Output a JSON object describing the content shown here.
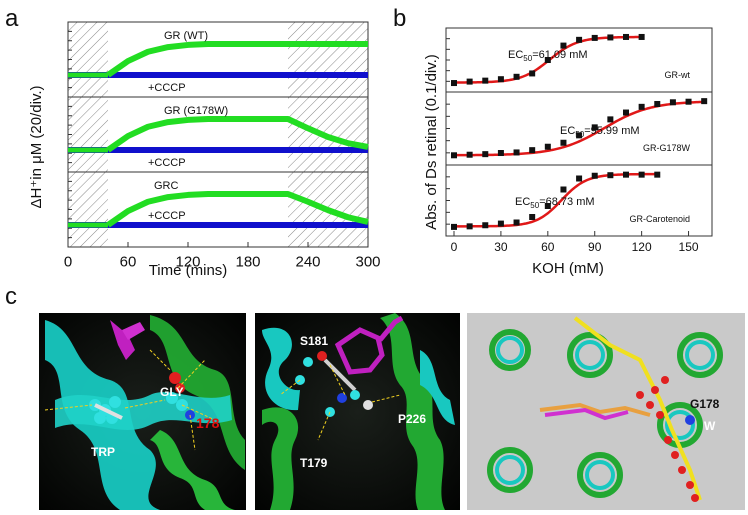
{
  "panel_labels": {
    "a": "a",
    "b": "b",
    "c": "c"
  },
  "chart_data": [
    {
      "type": "line",
      "panel": "a",
      "xlabel": "Time (mins)",
      "ylabel": "ΔH⁺in μM (20/div.)",
      "xlim": [
        0,
        300
      ],
      "xticks": [
        "0",
        "60",
        "120",
        "180",
        "240",
        "300"
      ],
      "light_off_shading_x": [
        [
          0,
          40
        ],
        [
          220,
          300
        ]
      ],
      "colors": {
        "signal": "#22dd22",
        "cccp": "#1010cc"
      },
      "subplots": [
        {
          "series": [
            {
              "name": "GR (WT)",
              "x": [
                40,
                60,
                80,
                100,
                120,
                140,
                160,
                180,
                200,
                220,
                240,
                260,
                280,
                300
              ],
              "y": [
                0,
                0.45,
                0.75,
                0.9,
                0.97,
                1.0,
                1.0,
                1.0,
                1.0,
                1.0,
                1.0,
                1.0,
                1.0,
                1.0
              ]
            },
            {
              "name": "+CCCP",
              "x": [
                0,
                300
              ],
              "y": [
                0,
                0
              ]
            }
          ]
        },
        {
          "series": [
            {
              "name": "GR (G178W)",
              "x": [
                40,
                60,
                80,
                100,
                120,
                140,
                160,
                180,
                200,
                220,
                240,
                260,
                280,
                300
              ],
              "y": [
                0,
                0.45,
                0.75,
                0.9,
                0.97,
                1.0,
                1.0,
                1.0,
                1.0,
                1.0,
                0.7,
                0.42,
                0.22,
                0.1
              ]
            },
            {
              "name": "+CCCP",
              "x": [
                0,
                300
              ],
              "y": [
                0,
                0
              ]
            }
          ]
        },
        {
          "series": [
            {
              "name": "GRC",
              "x": [
                40,
                60,
                80,
                100,
                120,
                140,
                160,
                180,
                200,
                220,
                240,
                260,
                280,
                300
              ],
              "y": [
                0,
                0.45,
                0.75,
                0.9,
                0.97,
                1.0,
                1.0,
                1.0,
                1.0,
                1.0,
                0.75,
                0.48,
                0.25,
                0.1
              ]
            },
            {
              "name": "+CCCP",
              "x": [
                0,
                300
              ],
              "y": [
                0,
                0
              ]
            }
          ]
        }
      ]
    },
    {
      "type": "scatter",
      "panel": "b",
      "xlabel": "KOH (mM)",
      "ylabel": "Abs. of Ds retinal (0.1/div.)",
      "xlim": [
        0,
        165
      ],
      "xticks": [
        "0",
        "30",
        "60",
        "90",
        "120",
        "150"
      ],
      "colors": {
        "points": "#111111",
        "fit": "#e01818"
      },
      "subplots": [
        {
          "name": "GR-wt",
          "ec50_prefix": "EC",
          "ec50_sub": "50",
          "ec50_rest": "=61.09 mM",
          "ec50": 61.09,
          "x": [
            0,
            10,
            20,
            30,
            40,
            50,
            60,
            70,
            80,
            90,
            100,
            110,
            120
          ],
          "y": [
            0.02,
            0.05,
            0.07,
            0.1,
            0.15,
            0.22,
            0.5,
            0.8,
            0.92,
            0.96,
            0.97,
            0.98,
            0.98
          ]
        },
        {
          "name": "GR-G178W",
          "ec50_prefix": "EC",
          "ec50_sub": "50",
          "ec50_rest": "=95.99 mM",
          "ec50": 95.99,
          "x": [
            0,
            10,
            20,
            30,
            40,
            50,
            60,
            70,
            80,
            90,
            100,
            110,
            120,
            130,
            140,
            150,
            160
          ],
          "y": [
            0.03,
            0.04,
            0.05,
            0.07,
            0.08,
            0.12,
            0.18,
            0.25,
            0.38,
            0.52,
            0.66,
            0.78,
            0.88,
            0.93,
            0.96,
            0.97,
            0.98
          ]
        },
        {
          "name": "GR-Carotenoid",
          "ec50_prefix": "EC",
          "ec50_sub": "50",
          "ec50_rest": "=68.73 mM",
          "ec50": 68.73,
          "x": [
            0,
            10,
            20,
            30,
            40,
            50,
            60,
            70,
            80,
            90,
            100,
            110,
            120,
            130
          ],
          "y": [
            0.02,
            0.03,
            0.05,
            0.08,
            0.1,
            0.2,
            0.4,
            0.7,
            0.9,
            0.95,
            0.96,
            0.97,
            0.97,
            0.97
          ]
        }
      ]
    }
  ],
  "structures": {
    "left": {
      "labels": [
        "GLY",
        "178",
        "TRP"
      ]
    },
    "middle": {
      "labels": [
        "S181",
        "P226",
        "T179"
      ]
    },
    "right": {
      "labels": [
        "G178",
        "W"
      ]
    }
  }
}
